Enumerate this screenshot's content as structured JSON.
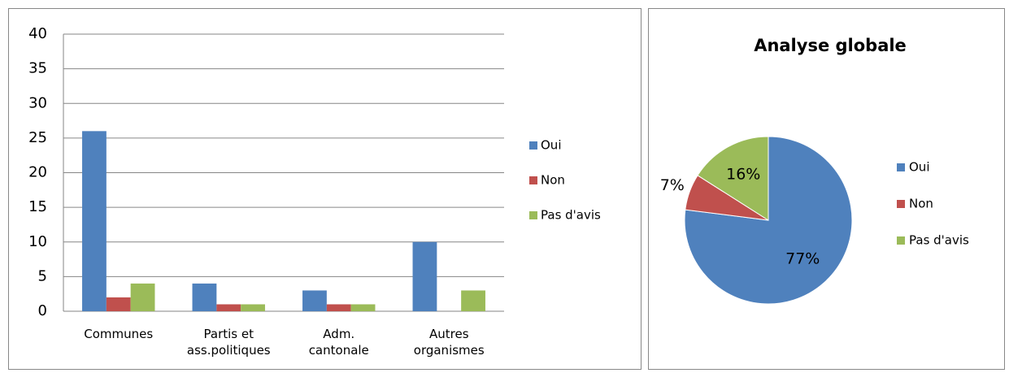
{
  "chart_data": [
    {
      "type": "bar",
      "categories": [
        "Communes",
        "Partis et\nass.politiques",
        "Adm.\ncantonale",
        "Autres\norganismes"
      ],
      "series": [
        {
          "name": "Oui",
          "color": "#4f81bd",
          "values": [
            26,
            4,
            3,
            10
          ]
        },
        {
          "name": "Non",
          "color": "#c0504d",
          "values": [
            2,
            1,
            1,
            0
          ]
        },
        {
          "name": "Pas d'avis",
          "color": "#9bbb59",
          "values": [
            4,
            1,
            1,
            3
          ]
        }
      ],
      "ylim": [
        0,
        40
      ],
      "yticks": [
        0,
        5,
        10,
        15,
        20,
        25,
        30,
        35,
        40
      ],
      "grid": true,
      "legend": "right"
    },
    {
      "type": "pie",
      "title": "Analyse globale",
      "categories": [
        "Oui",
        "Non",
        "Pas d'avis"
      ],
      "values": [
        77,
        7,
        16
      ],
      "value_labels": [
        "77%",
        "7%",
        "16%"
      ],
      "colors": [
        "#4f81bd",
        "#c0504d",
        "#9bbb59"
      ],
      "legend": "right"
    }
  ]
}
